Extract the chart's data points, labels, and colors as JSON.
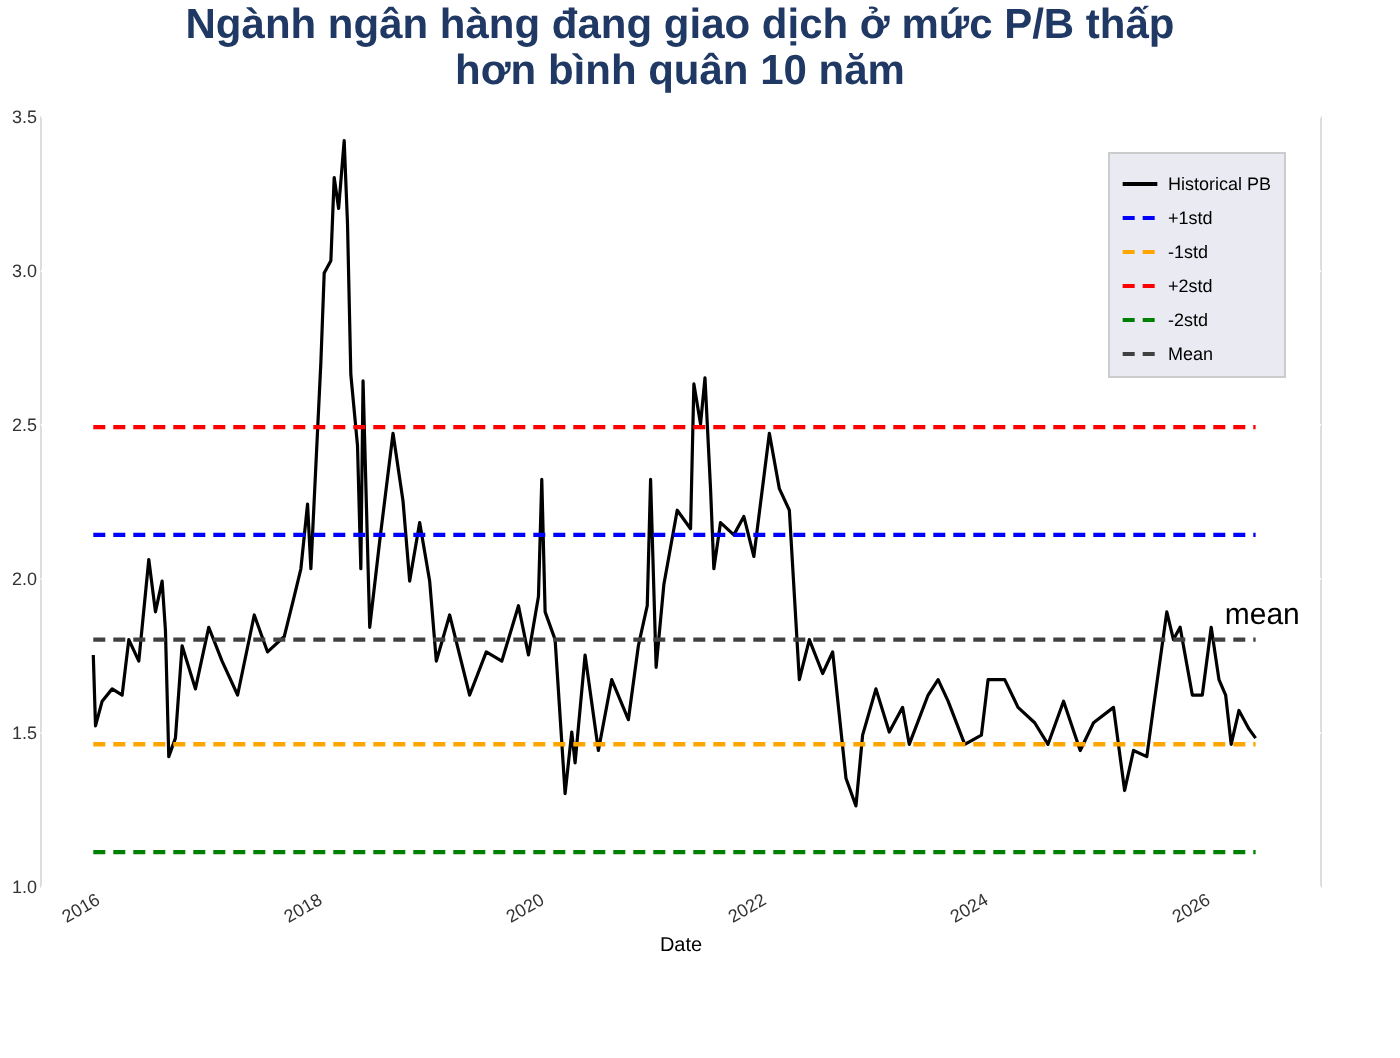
{
  "chart_data": {
    "type": "line",
    "title": "Ngành ngân hàng đang giao dịch ở mức P/B thấp\nhơn bình quân 10 năm",
    "xlabel": "Date",
    "xlim": [
      2015.52,
      2027.05
    ],
    "xticks": [
      2016,
      2018,
      2020,
      2022,
      2024,
      2026
    ],
    "ylim": [
      1.0,
      3.5
    ],
    "yticks": [
      {
        "value": 1.0,
        "label": "1.0"
      },
      {
        "value": 1.5,
        "label": "1.5"
      },
      {
        "value": 2.0,
        "label": "2.0"
      },
      {
        "value": 2.5,
        "label": "2.5"
      },
      {
        "value": 3.0,
        "label": "3.0"
      },
      {
        "value": 3.5,
        "label": "3.5"
      }
    ],
    "grid": true,
    "legend": "top right",
    "line_style": "solid",
    "marker": "none",
    "series": [
      {
        "name": "Historical PB",
        "color": "#000000",
        "x": [
          2016.0,
          2016.02,
          2016.08,
          2016.17,
          2016.26,
          2016.32,
          2016.41,
          2016.5,
          2016.56,
          2016.62,
          2016.65,
          2016.68,
          2016.74,
          2016.8,
          2016.92,
          2017.04,
          2017.16,
          2017.3,
          2017.45,
          2017.57,
          2017.72,
          2017.81,
          2017.87,
          2017.93,
          2017.96,
          2018.05,
          2018.08,
          2018.14,
          2018.17,
          2018.21,
          2018.26,
          2018.29,
          2018.32,
          2018.38,
          2018.41,
          2018.43,
          2018.49,
          2018.58,
          2018.7,
          2018.79,
          2018.85,
          2018.94,
          2019.03,
          2019.09,
          2019.21,
          2019.39,
          2019.54,
          2019.68,
          2019.83,
          2019.92,
          2020.01,
          2020.04,
          2020.07,
          2020.16,
          2020.25,
          2020.31,
          2020.34,
          2020.43,
          2020.55,
          2020.67,
          2020.82,
          2020.91,
          2020.99,
          2021.02,
          2021.07,
          2021.14,
          2021.26,
          2021.38,
          2021.41,
          2021.47,
          2021.51,
          2021.56,
          2021.59,
          2021.65,
          2021.77,
          2021.86,
          2021.95,
          2022.09,
          2022.18,
          2022.27,
          2022.36,
          2022.45,
          2022.57,
          2022.66,
          2022.78,
          2022.87,
          2022.93,
          2023.05,
          2023.17,
          2023.29,
          2023.35,
          2023.52,
          2023.61,
          2023.7,
          2023.85,
          2024.0,
          2024.06,
          2024.21,
          2024.33,
          2024.48,
          2024.6,
          2024.74,
          2024.89,
          2025.01,
          2025.19,
          2025.29,
          2025.37,
          2025.49,
          2025.55,
          2025.67,
          2025.73,
          2025.79,
          2025.9,
          2025.99,
          2026.07,
          2026.14,
          2026.2,
          2026.25,
          2026.32,
          2026.41,
          2026.47
        ],
        "values": [
          1.75,
          1.52,
          1.6,
          1.64,
          1.62,
          1.8,
          1.73,
          2.06,
          1.89,
          1.99,
          1.83,
          1.42,
          1.48,
          1.78,
          1.64,
          1.84,
          1.73,
          1.62,
          1.88,
          1.76,
          1.81,
          1.94,
          2.03,
          2.24,
          2.03,
          2.7,
          2.99,
          3.03,
          3.3,
          3.2,
          3.42,
          3.15,
          2.66,
          2.43,
          2.03,
          2.64,
          1.84,
          2.12,
          2.47,
          2.25,
          1.99,
          2.18,
          1.99,
          1.73,
          1.88,
          1.62,
          1.76,
          1.73,
          1.91,
          1.75,
          1.94,
          2.32,
          1.89,
          1.8,
          1.3,
          1.5,
          1.4,
          1.75,
          1.44,
          1.67,
          1.54,
          1.78,
          1.91,
          2.32,
          1.71,
          1.98,
          2.22,
          2.16,
          2.63,
          2.5,
          2.65,
          2.29,
          2.03,
          2.18,
          2.14,
          2.2,
          2.07,
          2.47,
          2.29,
          2.22,
          1.67,
          1.8,
          1.69,
          1.76,
          1.35,
          1.26,
          1.49,
          1.64,
          1.5,
          1.58,
          1.46,
          1.62,
          1.67,
          1.6,
          1.46,
          1.49,
          1.67,
          1.67,
          1.58,
          1.53,
          1.46,
          1.6,
          1.44,
          1.53,
          1.58,
          1.31,
          1.44,
          1.42,
          1.58,
          1.89,
          1.8,
          1.84,
          1.62,
          1.62,
          1.84,
          1.67,
          1.62,
          1.46,
          1.57,
          1.51,
          1.48
        ]
      }
    ],
    "ref_lines": [
      {
        "axis": "y",
        "value": 2.14,
        "label": "+1std",
        "color": "#0000ff",
        "line_style": "dashed"
      },
      {
        "axis": "y",
        "value": 1.46,
        "label": "-1std",
        "color": "#ffa500",
        "line_style": "dashed"
      },
      {
        "axis": "y",
        "value": 2.49,
        "label": "+2std",
        "color": "#ff0000",
        "line_style": "dashed"
      },
      {
        "axis": "y",
        "value": 1.11,
        "label": "-2std",
        "color": "#008000",
        "line_style": "dashed"
      },
      {
        "axis": "y",
        "value": 1.8,
        "label": "Mean",
        "color": "#404040",
        "line_style": "dashed"
      }
    ],
    "annotations": [
      {
        "text": "mean",
        "x": 2026.12,
        "y": 1.8
      }
    ]
  }
}
